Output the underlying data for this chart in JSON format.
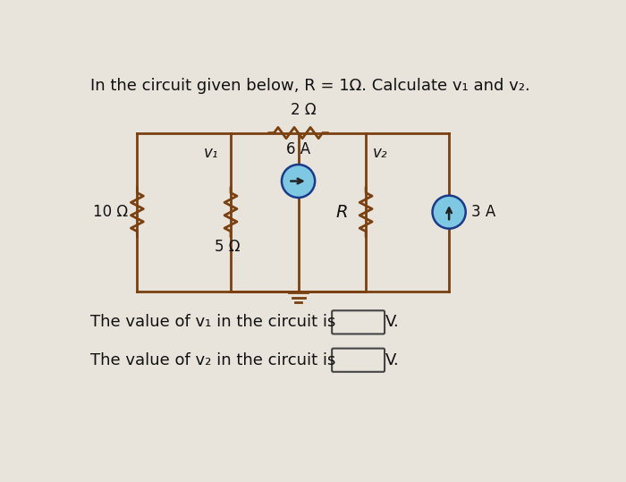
{
  "title": "In the circuit given below, R = 1Ω. Calculate v₁ and v₂.",
  "bg_color": "#e8e4dc",
  "circuit_color": "#7a4010",
  "text_color": "#111111",
  "label_10ohm": "10 Ω",
  "label_5ohm": "5 Ω",
  "label_2ohm": "2 Ω",
  "label_R": "R",
  "label_6A": "6 A",
  "label_3A": "3 A",
  "label_v1": "v₁",
  "label_v2": "v₂",
  "answer_line1": "The value of v₁ in the circuit is",
  "answer_line2": "The value of v₂ in the circuit is",
  "unit": "V.",
  "cs_fill": "#7ec8e3",
  "cs_edge": "#1a3a8a"
}
